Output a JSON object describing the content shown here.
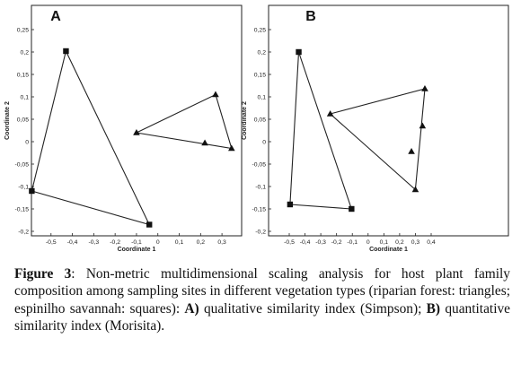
{
  "chart_data": [
    {
      "type": "scatter",
      "panel_label": "A",
      "xlabel": "Coordinate 1",
      "ylabel": "Coordinate 2",
      "xlim": [
        -0.6,
        0.35
      ],
      "ylim": [
        -0.2,
        0.25
      ],
      "x_ticks": [
        "-0,5",
        "-0,4",
        "-0,3",
        "-0,2",
        "-0,1",
        "0",
        "0,1",
        "0,2",
        "0,3"
      ],
      "y_ticks": [
        "0,25",
        "0,2",
        "0,15",
        "0,1",
        "0,05",
        "0",
        "-0,05",
        "-0,1",
        "-0,15",
        "-0,2"
      ],
      "series": [
        {
          "marker": "triangle",
          "points": [
            [
              -0.1,
              0.02
            ],
            [
              0.27,
              0.105
            ],
            [
              0.345,
              -0.015
            ],
            [
              0.22,
              -0.003
            ]
          ],
          "hull": [
            [
              -0.1,
              0.02
            ],
            [
              0.27,
              0.105
            ],
            [
              0.345,
              -0.015
            ]
          ]
        },
        {
          "marker": "square",
          "points": [
            [
              -0.43,
              0.202
            ],
            [
              -0.59,
              -0.11
            ],
            [
              -0.04,
              -0.185
            ]
          ],
          "hull": [
            [
              -0.43,
              0.202
            ],
            [
              -0.59,
              -0.11
            ],
            [
              -0.04,
              -0.185
            ]
          ]
        }
      ]
    },
    {
      "type": "scatter",
      "panel_label": "B",
      "xlabel": "Coordinate 1",
      "ylabel": "Coordinate 2",
      "xlim": [
        -0.5,
        0.4
      ],
      "ylim": [
        -0.2,
        0.25
      ],
      "x_ticks": [
        "-0,5",
        "-0,4",
        "-0,3",
        "-0,2",
        "-0,1",
        "0",
        "0,1",
        "0,2",
        "0,3",
        "0,4"
      ],
      "y_ticks": [
        "0,25",
        "0,2",
        "0,15",
        "0,1",
        "0,05",
        "0",
        "-0,05",
        "-0,1",
        "-0,15",
        "-0,2"
      ],
      "series": [
        {
          "marker": "triangle",
          "points": [
            [
              -0.24,
              0.062
            ],
            [
              0.36,
              0.118
            ],
            [
              0.3,
              -0.107
            ],
            [
              0.345,
              0.035
            ],
            [
              0.275,
              -0.022
            ]
          ],
          "hull": [
            [
              -0.24,
              0.062
            ],
            [
              0.36,
              0.118
            ],
            [
              0.3,
              -0.107
            ]
          ]
        },
        {
          "marker": "square",
          "points": [
            [
              -0.44,
              0.2
            ],
            [
              -0.495,
              -0.14
            ],
            [
              -0.105,
              -0.15
            ]
          ],
          "hull": [
            [
              -0.44,
              0.2
            ],
            [
              -0.495,
              -0.14
            ],
            [
              -0.105,
              -0.15
            ]
          ]
        }
      ]
    }
  ],
  "caption": {
    "figure_label": "Figure 3",
    "text_1": ": Non-metric multidimensional scaling analysis for host plant family composition among sampling sites in different vegetation types (riparian forest: triangles; espinilho savannah: squares): ",
    "label_a": "A)",
    "text_2": " qualitative similarity index (Simpson); ",
    "label_b": "B)",
    "text_3": " quantitative similarity index (Morisita)."
  }
}
